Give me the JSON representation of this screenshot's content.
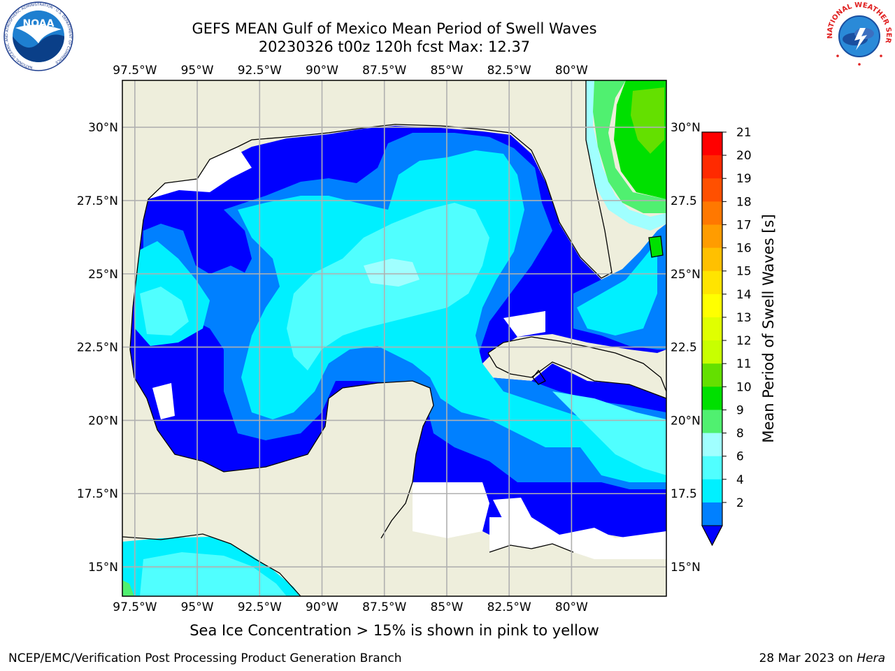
{
  "header": {
    "title_line1": "GEFS MEAN Gulf of Mexico Mean Period of Swell Waves",
    "title_line2": "20230326 t00z 120h fcst   Max: 12.37"
  },
  "logos": {
    "noaa_text": "NOAA",
    "noaa_ring_text": "NATIONAL OCEANIC AND ATMOSPHERIC ADMINISTRATION · U.S. DEPARTMENT OF COMMERCE",
    "nws_ring_text": "NATIONAL WEATHER SERVICE"
  },
  "map": {
    "lon_labels": [
      "97.5°W",
      "95°W",
      "92.5°W",
      "90°W",
      "87.5°W",
      "85°W",
      "82.5°W",
      "80°W"
    ],
    "lon_values": [
      -97.5,
      -95,
      -92.5,
      -90,
      -87.5,
      -85,
      -82.5,
      -80
    ],
    "lat_labels_left": [
      "30°N",
      "27.5°N",
      "25°N",
      "22.5°N",
      "20°N",
      "17.5°N",
      "15°N"
    ],
    "lat_labels_right": [
      "30°N",
      "27.5",
      "25°N",
      "22.5",
      "20°N",
      "17.5",
      "15°N"
    ],
    "lat_values": [
      30,
      27.5,
      25,
      22.5,
      20,
      17.5,
      15
    ],
    "land_color": "#eeeedc",
    "grid_color": "#b0b0b0"
  },
  "colorbar": {
    "label": "Mean Period of Swell Waves [s]",
    "ticks": [
      "21",
      "20",
      "19",
      "18",
      "17",
      "16",
      "15",
      "14",
      "13",
      "12",
      "11",
      "10",
      "9",
      "8",
      "6",
      "4",
      "2"
    ],
    "colors": [
      "#ff0000",
      "#ff2a00",
      "#ff5000",
      "#ff7800",
      "#ff9c00",
      "#ffc000",
      "#ffe400",
      "#ffff00",
      "#e0ff00",
      "#c8ff00",
      "#64e000",
      "#00e000",
      "#50f070",
      "#a0ffff",
      "#50ffff",
      "#00f0ff",
      "#0080ff"
    ],
    "extend_color": "#0000ff"
  },
  "palette": {
    "lt2": "#0000ff",
    "b2_4": "#0080ff",
    "b4_6": "#00f0ff",
    "b6_8": "#50ffff",
    "b8_9": "#a0ffff",
    "b9_10": "#50f070",
    "b10_11": "#00e000",
    "b11_12": "#64e000"
  },
  "footer": {
    "note": "Sea Ice Concentration > 15% is shown in pink to yellow",
    "credit_left": "NCEP/EMC/Verification Post Processing Product Generation Branch",
    "credit_right_date": "28 Mar 2023 on ",
    "credit_right_host": "Hera"
  }
}
